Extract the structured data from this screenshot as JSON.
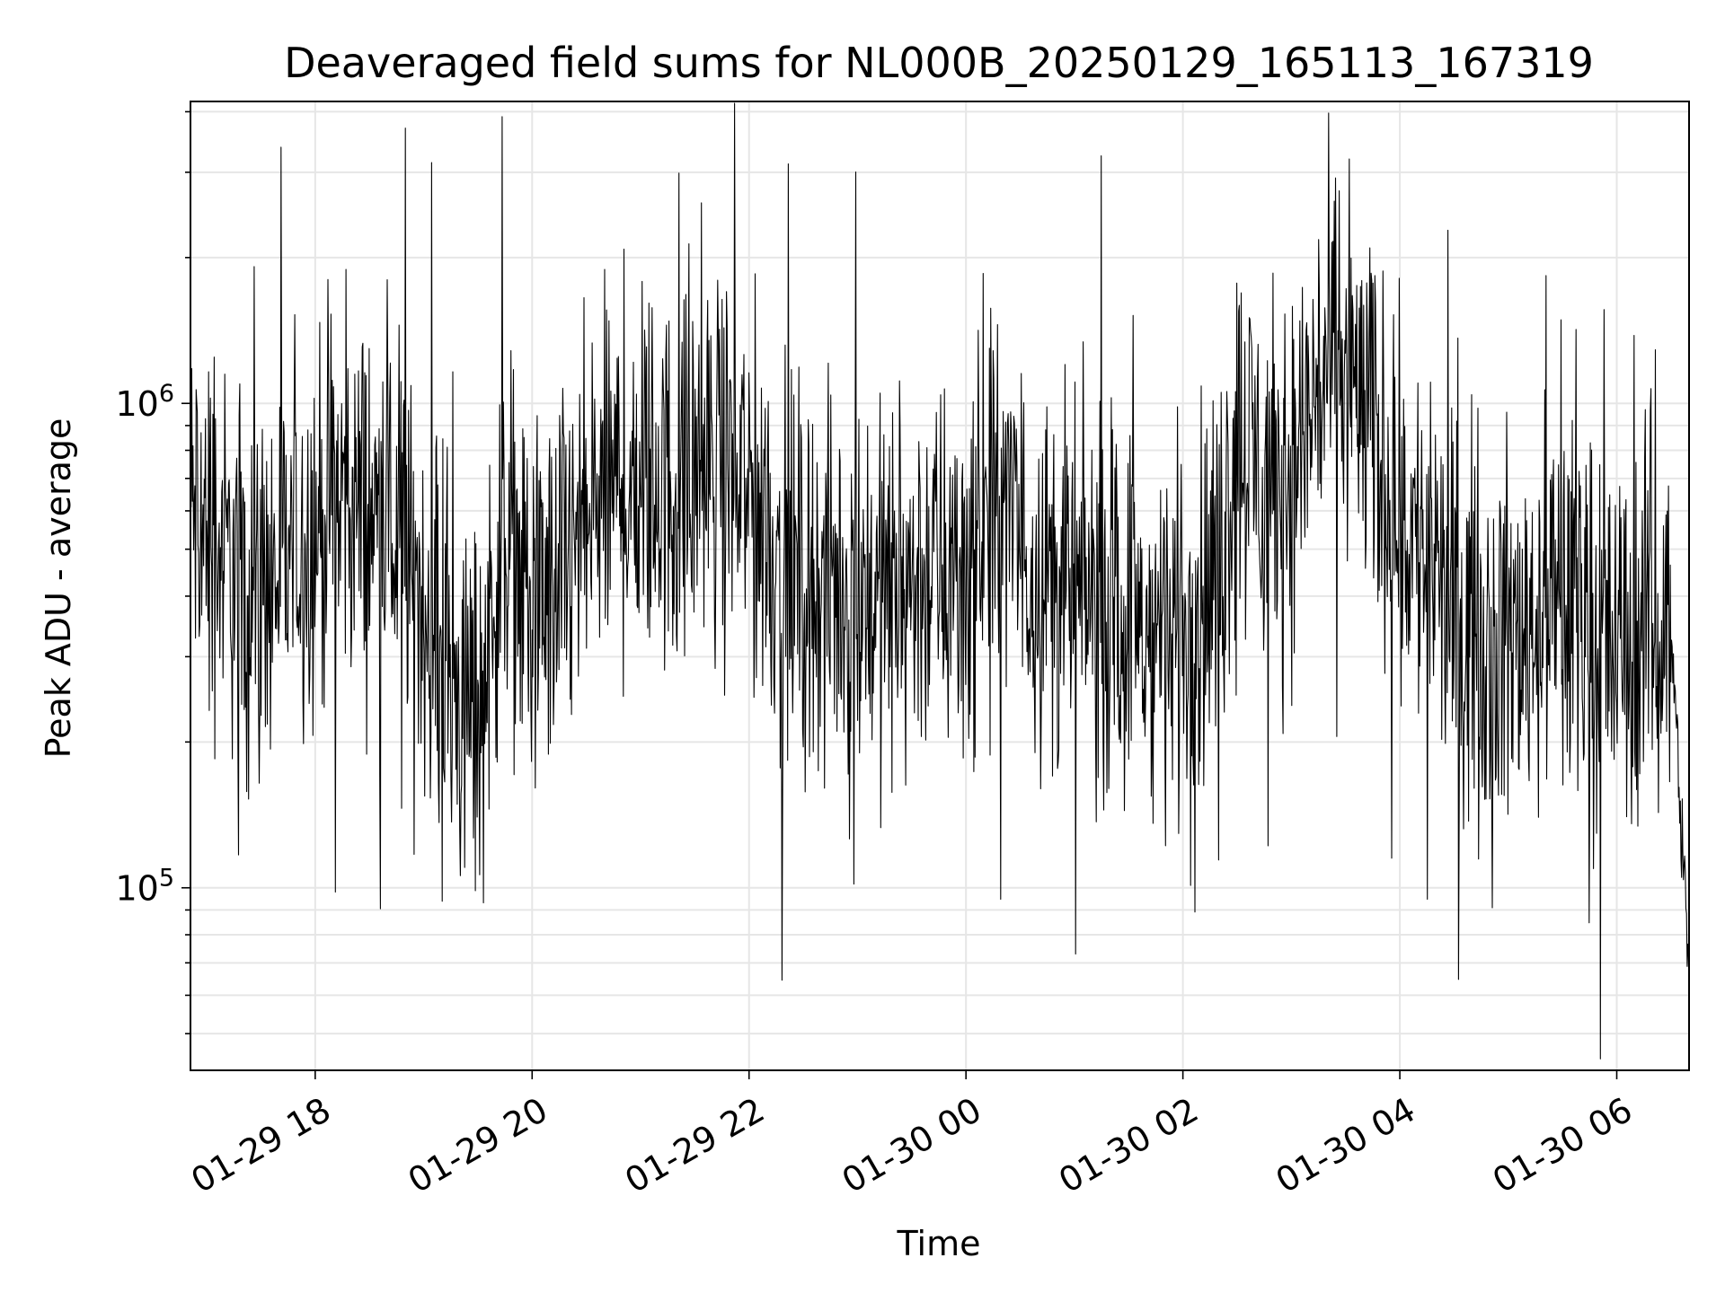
{
  "chart_data": {
    "type": "line",
    "title": "Deaveraged field sums for NL000B_20250129_165113_167319",
    "xlabel": "Time",
    "ylabel": "Peak ADU - average",
    "yscale": "log",
    "ylim": [
      42000,
      4200000
    ],
    "xlim": [
      "2025-01-29T16:51",
      "2025-01-30T06:40"
    ],
    "grid": true,
    "colors": {
      "line": "#000000",
      "grid": "#e6e6e6",
      "axes": "#000000"
    },
    "xticks": [
      {
        "value": "2025-01-29T18:00",
        "label": "01-29 18"
      },
      {
        "value": "2025-01-29T20:00",
        "label": "01-29 20"
      },
      {
        "value": "2025-01-29T22:00",
        "label": "01-29 22"
      },
      {
        "value": "2025-01-30T00:00",
        "label": "01-30 00"
      },
      {
        "value": "2025-01-30T02:00",
        "label": "01-30 02"
      },
      {
        "value": "2025-01-30T04:00",
        "label": "01-30 04"
      },
      {
        "value": "2025-01-30T06:00",
        "label": "01-30 06"
      }
    ],
    "yticks": [
      {
        "value": 100000,
        "base": "10",
        "exp": "5"
      },
      {
        "value": 1000000,
        "base": "10",
        "exp": "6"
      }
    ],
    "series": [
      {
        "x": [
          "2025-01-29T16:51",
          "2025-01-29T17:15",
          "2025-01-29T17:30",
          "2025-01-29T17:50",
          "2025-01-29T18:15",
          "2025-01-29T18:40",
          "2025-01-29T19:00",
          "2025-01-29T19:15",
          "2025-01-29T19:30",
          "2025-01-29T19:45",
          "2025-01-29T20:00",
          "2025-01-29T20:15",
          "2025-01-29T20:40",
          "2025-01-29T21:00",
          "2025-01-29T21:20",
          "2025-01-29T21:40",
          "2025-01-29T22:00",
          "2025-01-29T22:20",
          "2025-01-29T22:40",
          "2025-01-29T23:00",
          "2025-01-29T23:20",
          "2025-01-29T23:40",
          "2025-01-30T00:00",
          "2025-01-30T00:20",
          "2025-01-30T00:40",
          "2025-01-30T01:00",
          "2025-01-30T01:20",
          "2025-01-30T01:40",
          "2025-01-30T02:00",
          "2025-01-30T02:20",
          "2025-01-30T02:30",
          "2025-01-30T02:45",
          "2025-01-30T03:00",
          "2025-01-30T03:15",
          "2025-01-30T03:30",
          "2025-01-30T03:45",
          "2025-01-30T04:00",
          "2025-01-30T04:20",
          "2025-01-30T04:40",
          "2025-01-30T05:00",
          "2025-01-30T05:20",
          "2025-01-30T05:40",
          "2025-01-30T06:00",
          "2025-01-30T06:20",
          "2025-01-30T06:30",
          "2025-01-30T06:40"
        ],
        "values": [
          600000,
          450000,
          400000,
          500000,
          650000,
          550000,
          400000,
          250000,
          220000,
          600000,
          350000,
          420000,
          650000,
          700000,
          650000,
          750000,
          650000,
          450000,
          400000,
          420000,
          400000,
          450000,
          450000,
          600000,
          450000,
          400000,
          380000,
          330000,
          350000,
          450000,
          900000,
          700000,
          700000,
          1100000,
          1200000,
          850000,
          600000,
          420000,
          350000,
          320000,
          380000,
          370000,
          300000,
          350000,
          350000,
          65000
        ]
      }
    ]
  }
}
